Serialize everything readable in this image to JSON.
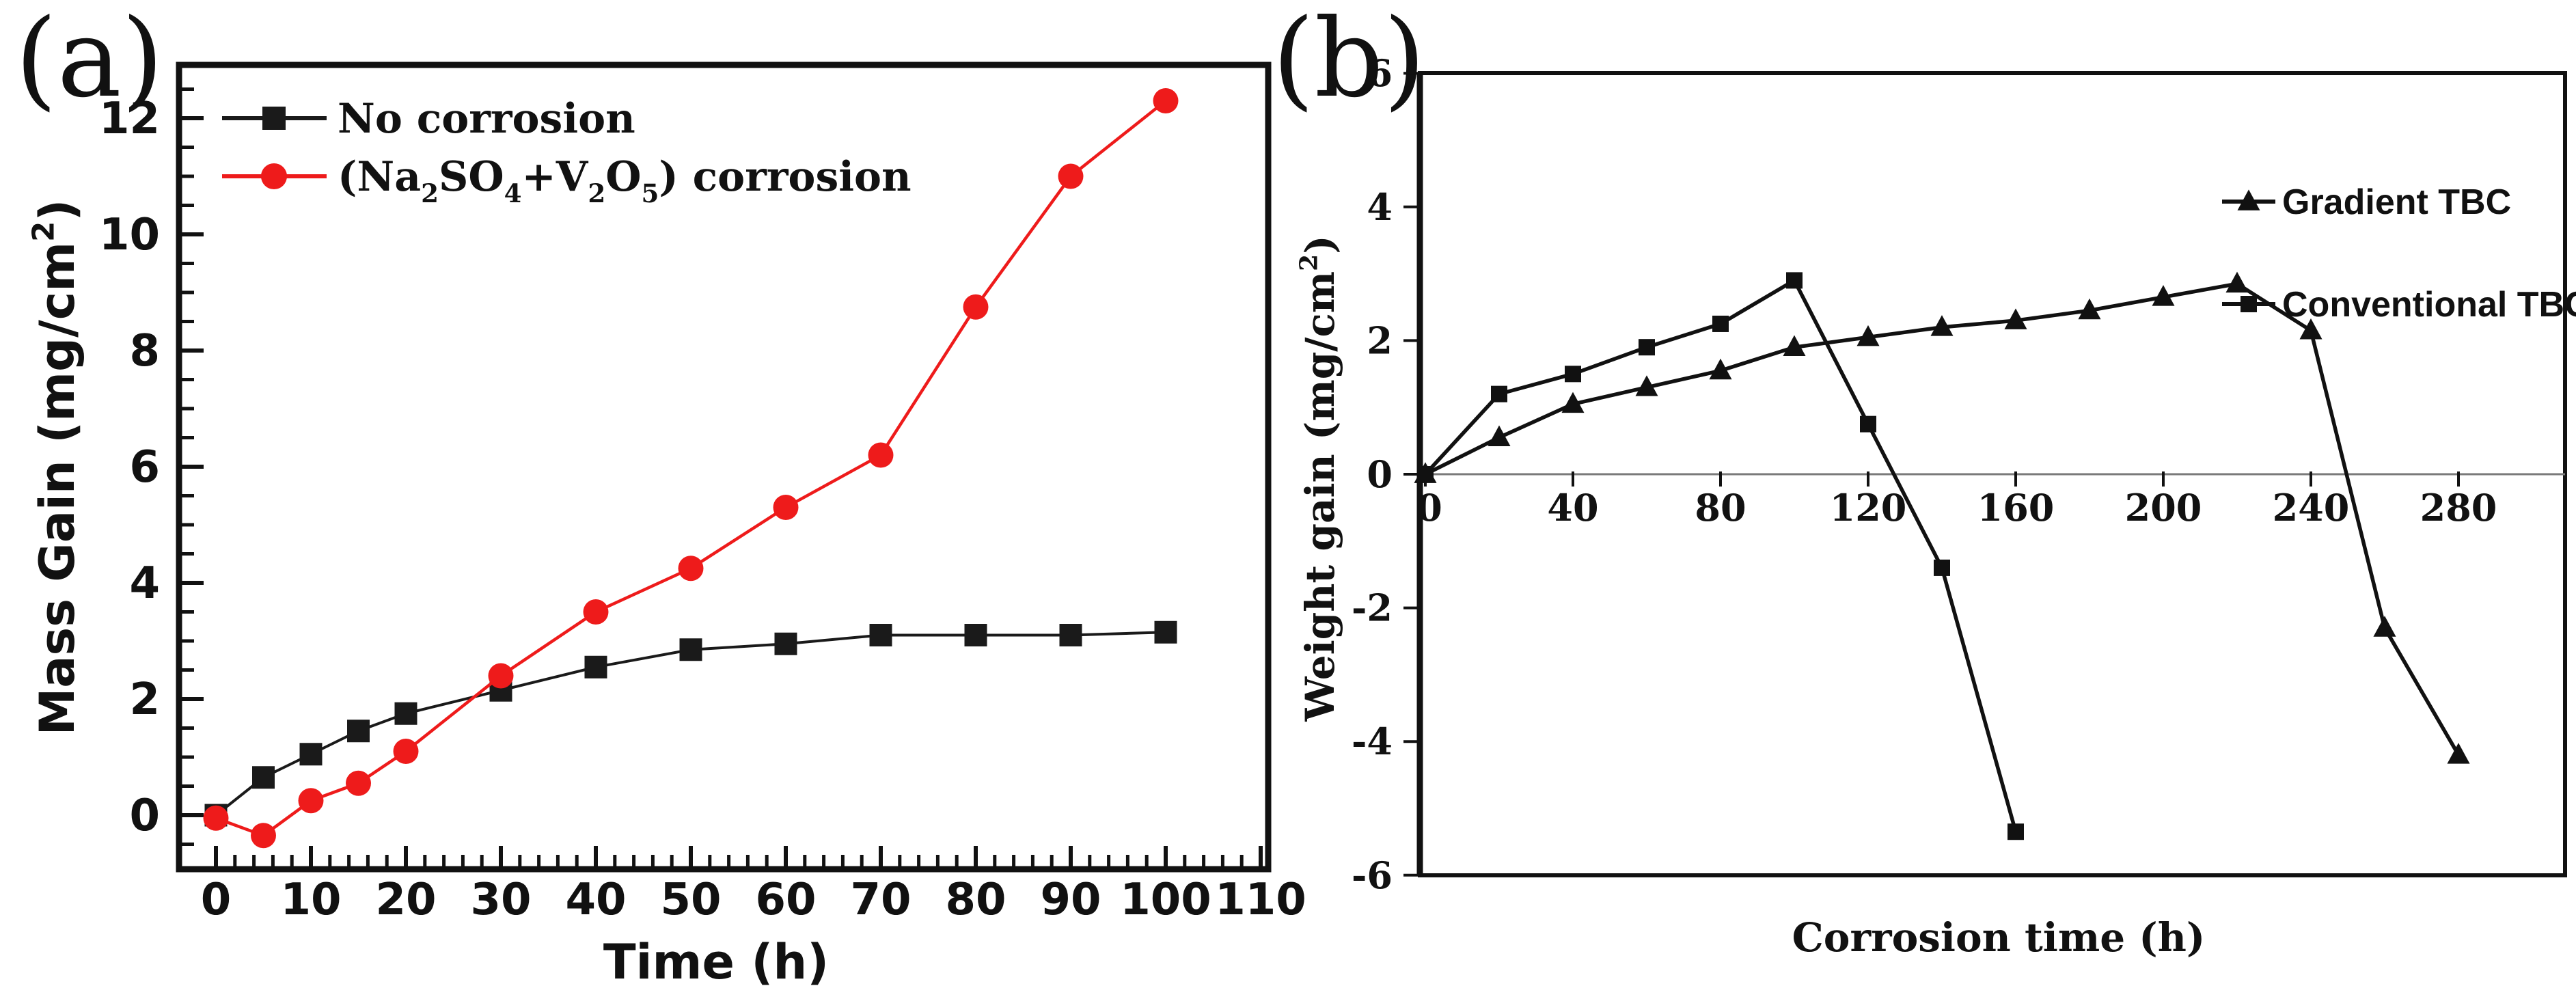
{
  "figure": {
    "background": "#ffffff",
    "panel_a_label": "(a)",
    "panel_b_label": "(b)"
  },
  "chart_data": [
    {
      "type": "line",
      "panel": "a",
      "xlabel": "Time (h)",
      "ylabel_parts": [
        {
          "t": "Mass Gain (mg/cm"
        },
        {
          "t": "2",
          "sup": true
        },
        {
          "t": ")"
        }
      ],
      "x_tick_labels": [
        "0",
        "10",
        "20",
        "30",
        "40",
        "50",
        "60",
        "70",
        "80",
        "90",
        "100",
        "110"
      ],
      "x_tick_values": [
        0,
        10,
        20,
        30,
        40,
        50,
        60,
        70,
        80,
        90,
        100,
        110
      ],
      "x_minor_step": 2,
      "y_tick_labels": [
        "0",
        "2",
        "4",
        "6",
        "8",
        "10",
        "12"
      ],
      "y_tick_values": [
        0,
        2,
        4,
        6,
        8,
        10,
        12
      ],
      "y_minor_step": 0.5,
      "xlim": [
        -4,
        111
      ],
      "ylim": [
        -0.95,
        12.95
      ],
      "grid": false,
      "legend_position": "top-left-inside",
      "series": [
        {
          "name_parts": [
            {
              "t": "No corrosion"
            }
          ],
          "color": "#1a1a1a",
          "marker": "square",
          "x": [
            0,
            5,
            10,
            15,
            20,
            30,
            40,
            50,
            60,
            70,
            80,
            90,
            100
          ],
          "y": [
            0.0,
            0.65,
            1.05,
            1.45,
            1.75,
            2.15,
            2.55,
            2.85,
            2.95,
            3.1,
            3.1,
            3.1,
            3.15
          ]
        },
        {
          "name_parts": [
            {
              "t": "(Na"
            },
            {
              "t": "2",
              "sub": true
            },
            {
              "t": "SO"
            },
            {
              "t": "4",
              "sub": true
            },
            {
              "t": "+V"
            },
            {
              "t": "2",
              "sub": true
            },
            {
              "t": "O"
            },
            {
              "t": "5",
              "sub": true
            },
            {
              "t": ") corrosion"
            }
          ],
          "color": "#ee1b1b",
          "marker": "circle",
          "x": [
            0,
            5,
            10,
            15,
            20,
            30,
            40,
            50,
            60,
            70,
            80,
            90,
            100
          ],
          "y": [
            -0.05,
            -0.35,
            0.25,
            0.55,
            1.1,
            2.4,
            3.5,
            4.25,
            5.3,
            6.2,
            8.75,
            11.0,
            12.3
          ]
        }
      ]
    },
    {
      "type": "line",
      "panel": "b",
      "xlabel": "Corrosion time (h)",
      "ylabel_parts": [
        {
          "t": "Weight gain (mg/cm"
        },
        {
          "t": "2",
          "sup": true
        },
        {
          "t": ")"
        }
      ],
      "x_tick_labels": [
        "0",
        "40",
        "80",
        "120",
        "160",
        "200",
        "240",
        "280"
      ],
      "x_tick_values": [
        0,
        40,
        80,
        120,
        160,
        200,
        240,
        280
      ],
      "y_tick_labels": [
        "6",
        "4",
        "2",
        "0",
        "-2",
        "-4",
        "-6"
      ],
      "y_tick_values": [
        6,
        4,
        2,
        0,
        -2,
        -4,
        -6
      ],
      "xlim": [
        0,
        309
      ],
      "ylim": [
        -6,
        6
      ],
      "grid": false,
      "zero_line": true,
      "legend_position": "top-right-inside",
      "series": [
        {
          "name_parts": [
            {
              "t": "Gradient TBC"
            }
          ],
          "color": "#111111",
          "marker": "triangle",
          "x": [
            0,
            20,
            40,
            60,
            80,
            100,
            120,
            140,
            160,
            180,
            200,
            220,
            240,
            260,
            280
          ],
          "y": [
            0.0,
            0.55,
            1.05,
            1.3,
            1.55,
            1.9,
            2.05,
            2.2,
            2.3,
            2.45,
            2.65,
            2.85,
            2.15,
            -2.3,
            -4.2
          ]
        },
        {
          "name_parts": [
            {
              "t": "Conventional TBC"
            }
          ],
          "color": "#111111",
          "marker": "square",
          "x": [
            0,
            20,
            40,
            60,
            80,
            100,
            120,
            140,
            160
          ],
          "y": [
            0.0,
            1.2,
            1.5,
            1.9,
            2.25,
            2.9,
            0.75,
            -1.4,
            -5.35
          ]
        }
      ]
    }
  ]
}
